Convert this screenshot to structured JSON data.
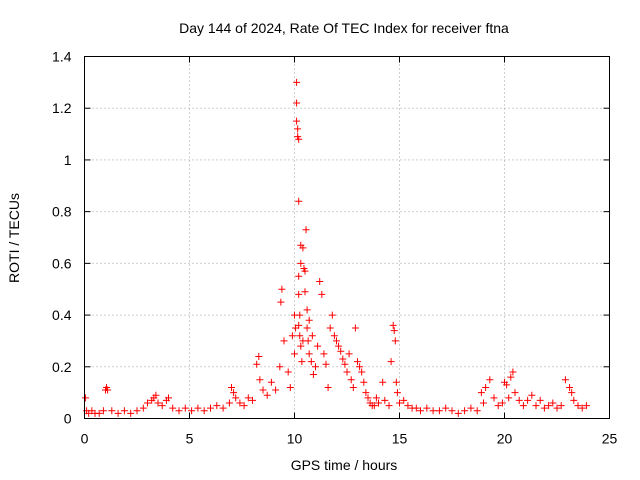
{
  "chart_data": {
    "type": "scatter",
    "title": "Day 144 of 2024, Rate Of TEC Index for receiver ftna",
    "xlabel": "GPS time / hours",
    "ylabel": "ROTI / TECUs",
    "xlim": [
      0,
      25
    ],
    "ylim": [
      0,
      1.4
    ],
    "x_ticks": [
      "0",
      "5",
      "10",
      "15",
      "20",
      "25"
    ],
    "y_ticks": [
      "0",
      "0.2",
      "0.4",
      "0.6",
      "0.8",
      "1",
      "1.2",
      "1.4"
    ],
    "grid": true,
    "marker": "plus",
    "color": "#ff0000",
    "legend": "none",
    "series": [
      {
        "x": [
          0.05,
          0.1,
          0.2,
          0.35,
          0.5,
          0.7,
          0.9,
          1.0,
          1.05,
          1.1,
          1.3,
          1.6,
          1.9,
          2.2,
          2.5,
          2.8,
          3.0,
          3.2,
          3.3,
          3.4,
          3.5,
          3.7,
          3.9,
          4.0,
          4.2,
          4.5,
          4.8,
          5.1,
          5.4,
          5.7,
          6.0,
          6.3,
          6.6,
          6.9,
          7.0,
          7.1,
          7.2,
          7.4,
          7.6,
          7.8,
          8.0,
          8.2,
          8.3,
          8.35,
          8.5,
          8.7,
          8.9,
          9.1,
          9.3,
          9.35,
          9.4,
          9.5,
          9.7,
          9.8,
          9.9,
          10.0,
          10.0,
          10.05,
          10.1,
          10.1,
          10.1,
          10.15,
          10.15,
          10.2,
          10.2,
          10.2,
          10.2,
          10.2,
          10.25,
          10.25,
          10.3,
          10.3,
          10.3,
          10.35,
          10.4,
          10.4,
          10.45,
          10.5,
          10.5,
          10.55,
          10.6,
          10.6,
          10.65,
          10.7,
          10.7,
          10.8,
          10.85,
          10.9,
          11.0,
          11.1,
          11.2,
          11.3,
          11.4,
          11.5,
          11.6,
          11.7,
          11.8,
          11.9,
          12.0,
          12.1,
          12.2,
          12.3,
          12.4,
          12.5,
          12.6,
          12.7,
          12.8,
          12.9,
          13.0,
          13.1,
          13.2,
          13.3,
          13.4,
          13.5,
          13.6,
          13.7,
          13.8,
          13.9,
          14.0,
          14.2,
          14.3,
          14.5,
          14.6,
          14.7,
          14.75,
          14.8,
          14.85,
          14.9,
          15.0,
          15.2,
          15.4,
          15.6,
          15.8,
          16.0,
          16.3,
          16.6,
          16.9,
          17.2,
          17.5,
          17.8,
          18.1,
          18.4,
          18.7,
          18.9,
          19.0,
          19.1,
          19.3,
          19.5,
          19.7,
          19.9,
          20.0,
          20.1,
          20.2,
          20.3,
          20.4,
          20.5,
          20.7,
          20.9,
          21.1,
          21.3,
          21.5,
          21.7,
          21.9,
          22.1,
          22.3,
          22.5,
          22.7,
          22.9,
          23.1,
          23.2,
          23.3,
          23.5,
          23.7,
          23.9
        ],
        "y": [
          0.08,
          0.03,
          0.02,
          0.03,
          0.02,
          0.02,
          0.03,
          0.11,
          0.12,
          0.11,
          0.03,
          0.02,
          0.03,
          0.02,
          0.03,
          0.04,
          0.06,
          0.07,
          0.08,
          0.09,
          0.06,
          0.05,
          0.07,
          0.08,
          0.04,
          0.03,
          0.04,
          0.03,
          0.04,
          0.03,
          0.04,
          0.05,
          0.04,
          0.06,
          0.12,
          0.1,
          0.08,
          0.06,
          0.05,
          0.08,
          0.07,
          0.21,
          0.24,
          0.15,
          0.11,
          0.09,
          0.14,
          0.11,
          0.2,
          0.45,
          0.5,
          0.3,
          0.18,
          0.12,
          0.32,
          0.25,
          0.4,
          0.35,
          1.3,
          1.22,
          1.15,
          1.12,
          1.09,
          1.08,
          0.84,
          0.48,
          0.55,
          0.36,
          0.32,
          0.4,
          0.67,
          0.28,
          0.6,
          0.22,
          0.66,
          0.3,
          0.58,
          0.57,
          0.49,
          0.73,
          0.42,
          0.35,
          0.3,
          0.38,
          0.25,
          0.22,
          0.32,
          0.17,
          0.2,
          0.28,
          0.53,
          0.48,
          0.25,
          0.21,
          0.12,
          0.35,
          0.4,
          0.32,
          0.3,
          0.28,
          0.26,
          0.23,
          0.21,
          0.18,
          0.25,
          0.15,
          0.12,
          0.35,
          0.22,
          0.2,
          0.18,
          0.14,
          0.1,
          0.08,
          0.06,
          0.05,
          0.05,
          0.08,
          0.06,
          0.14,
          0.07,
          0.05,
          0.22,
          0.36,
          0.34,
          0.3,
          0.14,
          0.1,
          0.06,
          0.07,
          0.05,
          0.04,
          0.04,
          0.03,
          0.04,
          0.03,
          0.03,
          0.04,
          0.03,
          0.02,
          0.03,
          0.04,
          0.03,
          0.1,
          0.06,
          0.12,
          0.15,
          0.08,
          0.05,
          0.06,
          0.14,
          0.13,
          0.08,
          0.16,
          0.18,
          0.1,
          0.07,
          0.05,
          0.07,
          0.09,
          0.05,
          0.07,
          0.04,
          0.05,
          0.06,
          0.04,
          0.05,
          0.15,
          0.12,
          0.1,
          0.07,
          0.05,
          0.04,
          0.05
        ]
      }
    ]
  }
}
